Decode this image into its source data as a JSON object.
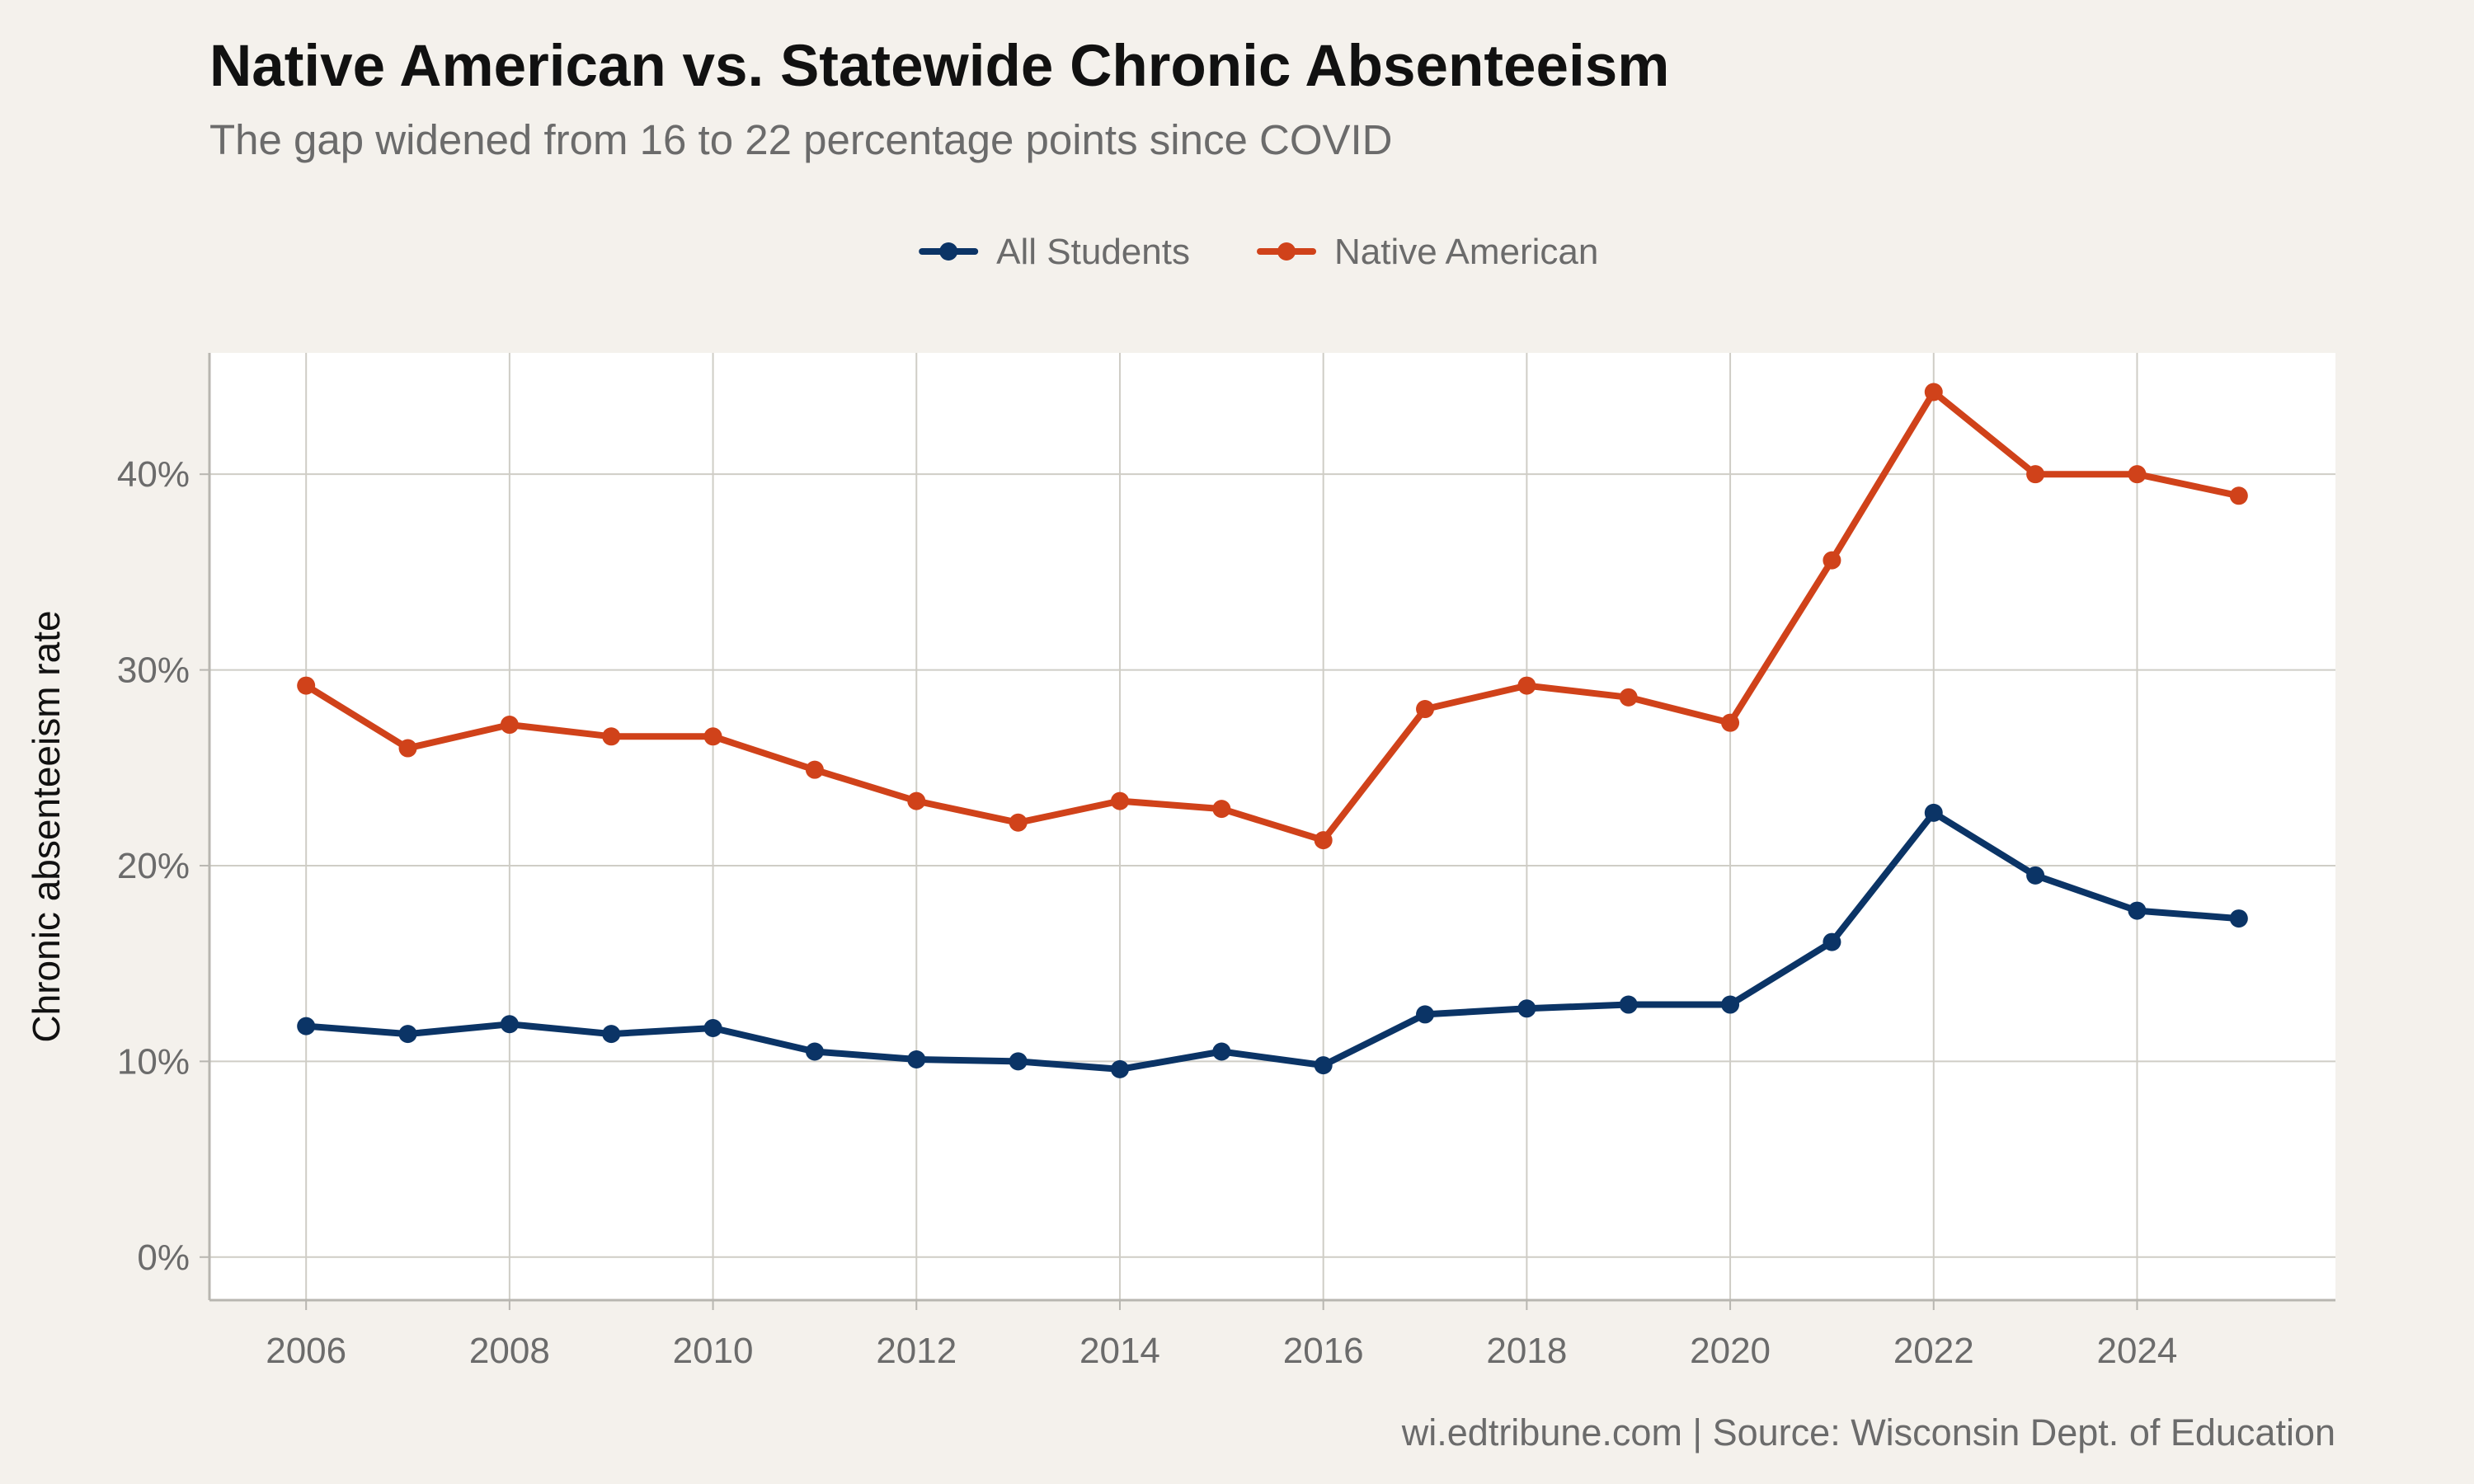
{
  "chart_data": {
    "type": "line",
    "title": "Native American vs. Statewide Chronic Absenteeism",
    "subtitle": "The gap widened from 16 to 22 percentage points since COVID",
    "caption": "wi.edtribune.com | Source: Wisconsin Dept. of Education",
    "xlabel": "",
    "ylabel": "Chronic absenteeism rate",
    "x": [
      2006,
      2007,
      2008,
      2009,
      2010,
      2011,
      2012,
      2013,
      2014,
      2015,
      2016,
      2017,
      2018,
      2019,
      2020,
      2021,
      2022,
      2023,
      2024,
      2025
    ],
    "x_ticks": [
      2006,
      2008,
      2010,
      2012,
      2014,
      2016,
      2018,
      2020,
      2022,
      2024
    ],
    "y_ticks": [
      0,
      10,
      20,
      30,
      40
    ],
    "y_tick_labels": [
      "0%",
      "10%",
      "20%",
      "30%",
      "40%"
    ],
    "xlim": [
      2005.05,
      2025.95
    ],
    "ylim": [
      -2.2,
      46.2
    ],
    "grid": true,
    "legend_position": "top",
    "series": [
      {
        "name": "All Students",
        "color": "#0b3466",
        "values": [
          11.8,
          11.4,
          11.9,
          11.4,
          11.7,
          10.5,
          10.1,
          10.0,
          9.6,
          10.5,
          9.8,
          12.4,
          12.7,
          12.9,
          12.9,
          16.1,
          22.7,
          19.5,
          17.7,
          17.3
        ]
      },
      {
        "name": "Native American",
        "color": "#d0421a",
        "values": [
          29.2,
          26.0,
          27.2,
          26.6,
          26.6,
          24.9,
          23.3,
          22.2,
          23.3,
          22.9,
          21.3,
          28.0,
          29.2,
          28.6,
          27.3,
          35.6,
          44.2,
          40.0,
          40.0,
          38.9
        ]
      }
    ]
  }
}
